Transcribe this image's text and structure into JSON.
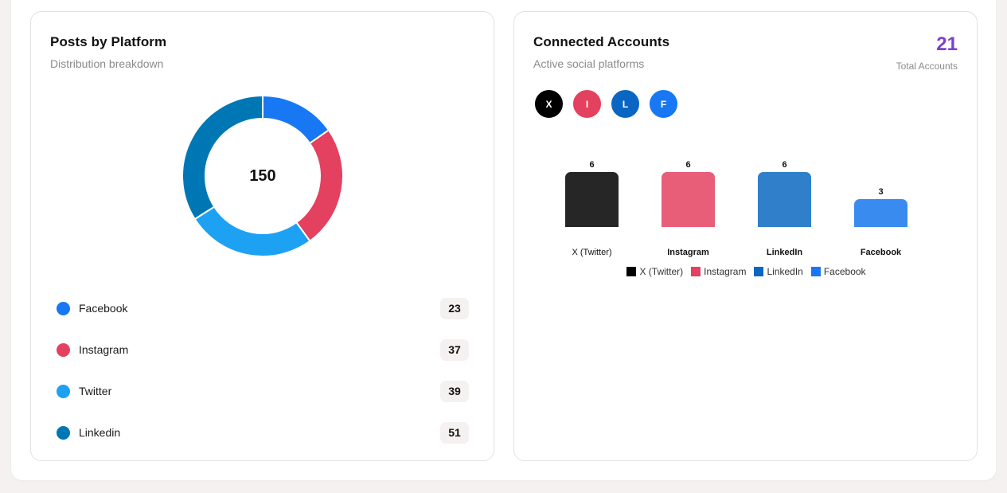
{
  "posts_card": {
    "title": "Posts by Platform",
    "subtitle": "Distribution breakdown",
    "total": "150",
    "platforms": [
      {
        "name": "Facebook",
        "count": "23",
        "color": "#1877f2"
      },
      {
        "name": "Instagram",
        "count": "37",
        "color": "#e4405f"
      },
      {
        "name": "Twitter",
        "count": "39",
        "color": "#1da1f2"
      },
      {
        "name": "Linkedin",
        "count": "51",
        "color": "#0077b5"
      }
    ]
  },
  "accounts_card": {
    "title": "Connected Accounts",
    "subtitle": "Active social platforms",
    "total_value": "21",
    "total_label": "Total Accounts",
    "total_color": "#7b3fd1",
    "avatars": [
      {
        "letter": "X",
        "color": "#000000"
      },
      {
        "letter": "I",
        "color": "#e4405f"
      },
      {
        "letter": "L",
        "color": "#0a66c2"
      },
      {
        "letter": "F",
        "color": "#1877f2"
      }
    ]
  },
  "chart_data": [
    {
      "type": "pie",
      "subtype": "donut",
      "title": "Posts by Platform",
      "subtitle": "Distribution breakdown",
      "center_label": "150",
      "categories": [
        "Facebook",
        "Instagram",
        "Twitter",
        "Linkedin"
      ],
      "values": [
        23,
        37,
        39,
        51
      ],
      "colors": [
        "#1877f2",
        "#e4405f",
        "#1da1f2",
        "#0077b5"
      ],
      "legend_position": "bottom-list"
    },
    {
      "type": "bar",
      "title": "Connected Accounts",
      "subtitle": "Active social platforms",
      "categories": [
        "X (Twitter)",
        "Instagram",
        "LinkedIn",
        "Facebook"
      ],
      "values": [
        6,
        6,
        6,
        3
      ],
      "bar_colors": [
        "#262626",
        "#e85d78",
        "#2f7fca",
        "#3a8bef"
      ],
      "legend": [
        {
          "label": "X (Twitter)",
          "color": "#000000"
        },
        {
          "label": "Instagram",
          "color": "#e4405f"
        },
        {
          "label": "LinkedIn",
          "color": "#0a66c2"
        },
        {
          "label": "Facebook",
          "color": "#1877f2"
        }
      ],
      "data_labels": true,
      "grid": false,
      "axes_visible": false,
      "legend_position": "bottom",
      "ylim": [
        0,
        6
      ]
    }
  ]
}
